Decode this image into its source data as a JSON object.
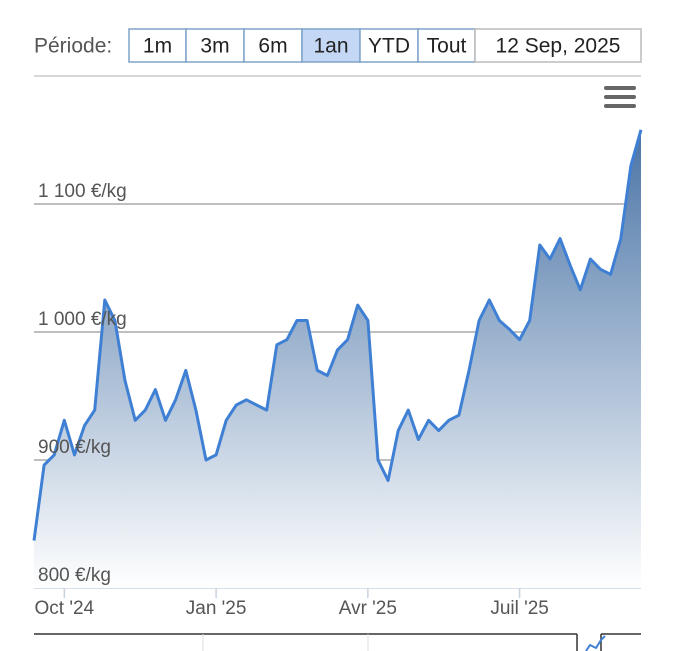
{
  "chart_data": {
    "type": "area",
    "range_selector": {
      "label": "Période:",
      "buttons": [
        "1m",
        "3m",
        "6m",
        "1an",
        "YTD",
        "Tout"
      ],
      "selected": 3,
      "date": "12 Sep, 2025"
    },
    "categories": [
      null,
      null,
      null,
      "Oct '24",
      null,
      null,
      null,
      null,
      null,
      null,
      null,
      null,
      null,
      null,
      null,
      null,
      null,
      null,
      "Jan '25",
      null,
      null,
      null,
      null,
      null,
      null,
      null,
      null,
      null,
      null,
      null,
      null,
      null,
      null,
      "Avr '25",
      null,
      null,
      null,
      null,
      null,
      null,
      null,
      null,
      null,
      null,
      null,
      null,
      null,
      null,
      "Juil '25",
      null,
      null,
      null,
      null,
      null,
      null,
      null,
      null,
      null,
      null,
      null,
      null
    ],
    "values": [
      837,
      896,
      904,
      931,
      904,
      927,
      939,
      1025,
      1009,
      962,
      931,
      939,
      955,
      931,
      947,
      970,
      939,
      900,
      904,
      931,
      943,
      947,
      943,
      939,
      990,
      994,
      1009,
      1009,
      970,
      966,
      986,
      994,
      1021,
      1009,
      900,
      884,
      923,
      939,
      916,
      931,
      923,
      931,
      935,
      970,
      1009,
      1025,
      1009,
      1002,
      994,
      1009,
      1068,
      1057,
      1073,
      1052,
      1033,
      1057,
      1049,
      1045,
      1073,
      1130,
      1158
    ],
    "color": "#3f80d4",
    "ylim": [
      800,
      1200
    ],
    "yticks": [
      {
        "value": 800,
        "label": "800 €/kg"
      },
      {
        "value": 900,
        "label": "900 €/kg"
      },
      {
        "value": 1000,
        "label": "1 000 €/kg"
      },
      {
        "value": 1100,
        "label": "1 100 €/kg"
      }
    ],
    "grid": true
  }
}
